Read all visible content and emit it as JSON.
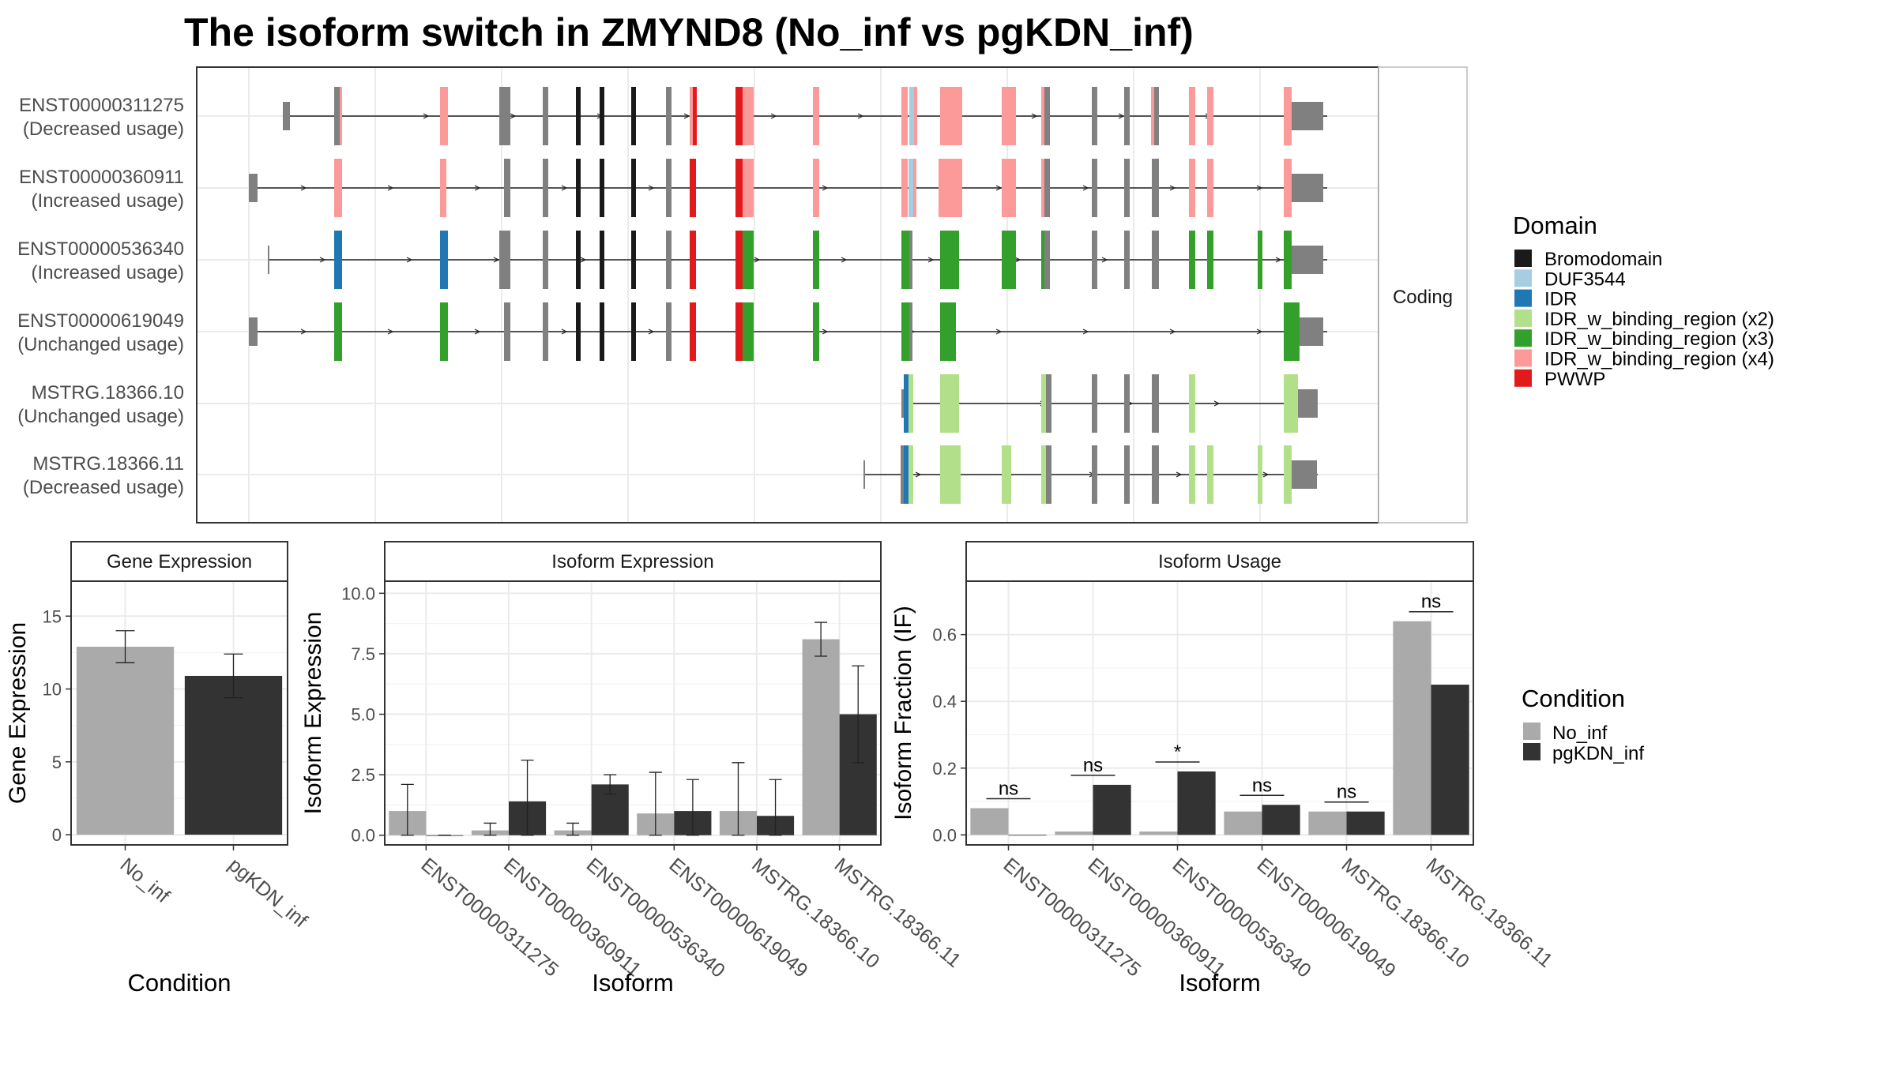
{
  "title": "The isoform switch in ZMYND8 (No_inf vs pgKDN_inf)",
  "colors": {
    "Bromodomain": "#1a1a1a",
    "DUF3544": "#a6cee3",
    "IDR": "#1f78b4",
    "IDR_w_binding_region (x2)": "#b2df8a",
    "IDR_w_binding_region (x3)": "#33a02c",
    "IDR_w_binding_region (x4)": "#fb9a99",
    "PWWP": "#e31a1c",
    "exon": "#808080",
    "No_inf": "#aaaaaa",
    "pgKDN_inf": "#333333"
  },
  "structure_panel": {
    "strip_label": "Coding",
    "isoforms": [
      {
        "id": "ENST00000311275",
        "usage": "(Decreased usage)"
      },
      {
        "id": "ENST00000360911",
        "usage": "(Increased usage)"
      },
      {
        "id": "ENST00000536340",
        "usage": "(Increased usage)"
      },
      {
        "id": "ENST00000619049",
        "usage": "(Unchanged usage)"
      },
      {
        "id": "MSTRG.18366.10",
        "usage": "(Unchanged usage)"
      },
      {
        "id": "MSTRG.18366.11",
        "usage": "(Decreased usage)"
      }
    ]
  },
  "domain_legend": {
    "title": "Domain",
    "items": [
      "Bromodomain",
      "DUF3544",
      "IDR",
      "IDR_w_binding_region (x2)",
      "IDR_w_binding_region (x3)",
      "IDR_w_binding_region (x4)",
      "PWWP"
    ]
  },
  "condition_legend": {
    "title": "Condition",
    "items": [
      "No_inf",
      "pgKDN_inf"
    ]
  },
  "chart_data": [
    {
      "type": "bar",
      "title": "Gene Expression",
      "xlabel": "Condition",
      "ylabel": "Gene Expression",
      "categories": [
        "No_inf",
        "pgKDN_inf"
      ],
      "values": [
        12.9,
        10.9
      ],
      "error_low": [
        11.8,
        9.4
      ],
      "error_high": [
        14.0,
        12.4
      ],
      "ylim": [
        -0.7,
        17.4
      ],
      "yticks": [
        "0",
        "5",
        "10",
        "15"
      ],
      "ytick_values": [
        0,
        5,
        10,
        15
      ],
      "grid": true
    },
    {
      "type": "bar",
      "title": "Isoform Expression",
      "xlabel": "Isoform",
      "ylabel": "Isoform Expression",
      "categories": [
        "ENST00000311275",
        "ENST00000360911",
        "ENST00000536340",
        "ENST00000619049",
        "MSTRG.18366.10",
        "MSTRG.18366.11"
      ],
      "series": [
        {
          "name": "No_inf",
          "values": [
            1.0,
            0.2,
            0.2,
            0.9,
            1.0,
            8.1
          ],
          "err_low": [
            0.0,
            0.0,
            0.0,
            0.0,
            0.0,
            7.4
          ],
          "err_high": [
            2.1,
            0.5,
            0.5,
            2.6,
            3.0,
            8.8
          ]
        },
        {
          "name": "pgKDN_inf",
          "values": [
            0.0,
            1.4,
            2.1,
            1.0,
            0.8,
            5.0
          ],
          "err_low": [
            0.0,
            0.0,
            1.7,
            0.0,
            0.0,
            3.0
          ],
          "err_high": [
            0.0,
            3.1,
            2.5,
            2.3,
            2.3,
            7.0
          ]
        }
      ],
      "ylim": [
        -0.4,
        10.5
      ],
      "yticks": [
        "0.0",
        "2.5",
        "5.0",
        "7.5",
        "10.0"
      ],
      "ytick_values": [
        0,
        2.5,
        5.0,
        7.5,
        10.0
      ],
      "grid": true
    },
    {
      "type": "bar",
      "title": "Isoform Usage",
      "xlabel": "Isoform",
      "ylabel": "Isoform Fraction (IF)",
      "categories": [
        "ENST00000311275",
        "ENST00000360911",
        "ENST00000536340",
        "ENST00000619049",
        "MSTRG.18366.10",
        "MSTRG.18366.11"
      ],
      "series": [
        {
          "name": "No_inf",
          "values": [
            0.08,
            0.01,
            0.01,
            0.07,
            0.07,
            0.64
          ]
        },
        {
          "name": "pgKDN_inf",
          "values": [
            0.0,
            0.15,
            0.19,
            0.09,
            0.07,
            0.45
          ]
        }
      ],
      "annotations": [
        "ns",
        "ns",
        "*",
        "ns",
        "ns",
        "ns"
      ],
      "ylim": [
        -0.03,
        0.76
      ],
      "yticks": [
        "0.0",
        "0.2",
        "0.4",
        "0.6"
      ],
      "ytick_values": [
        0,
        0.2,
        0.4,
        0.6
      ],
      "grid": true
    }
  ]
}
